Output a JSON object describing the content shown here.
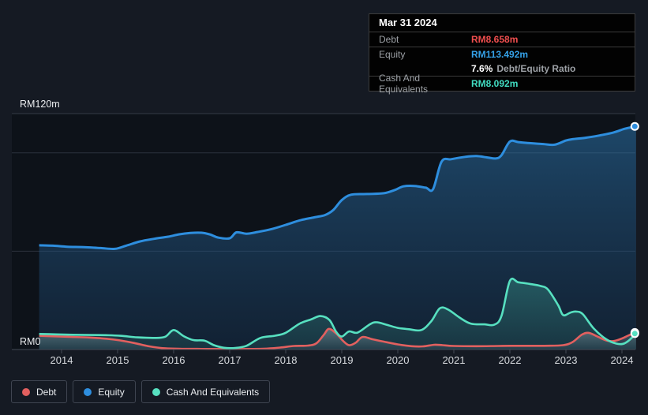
{
  "tooltip": {
    "title": "Mar 31 2024",
    "debt_label": "Debt",
    "debt_value": "RM8.658m",
    "equity_label": "Equity",
    "equity_value": "RM113.492m",
    "ratio_value": "7.6%",
    "ratio_label": "Debt/Equity Ratio",
    "cash_label": "Cash And Equivalents",
    "cash_value": "RM8.092m"
  },
  "legend": {
    "items": [
      {
        "label": "Debt",
        "color": "#e2605f"
      },
      {
        "label": "Equity",
        "color": "#2e8ede"
      },
      {
        "label": "Cash And Equivalents",
        "color": "#57e0c0"
      }
    ]
  },
  "chart_data": {
    "type": "area",
    "currency_unit": "RM millions",
    "y_axis_top_label": "RM120m",
    "y_axis_bottom_label": "RM0",
    "ylim": [
      0,
      120
    ],
    "gridline_values": [
      120,
      100,
      50,
      0
    ],
    "x_ticks": [
      2014,
      2015,
      2016,
      2017,
      2018,
      2019,
      2020,
      2021,
      2022,
      2023,
      2024
    ],
    "xlim": [
      2013.6,
      2024.25
    ],
    "legend_position": "bottom-left",
    "series": [
      {
        "name": "Equity",
        "color": "#2e8ede",
        "end_value": 113.492,
        "points": [
          [
            2013.6,
            53.0
          ],
          [
            2013.85,
            52.8
          ],
          [
            2014.1,
            52.3
          ],
          [
            2014.4,
            52.1
          ],
          [
            2014.7,
            51.6
          ],
          [
            2014.95,
            51.2
          ],
          [
            2015.15,
            52.8
          ],
          [
            2015.4,
            55.0
          ],
          [
            2015.65,
            56.3
          ],
          [
            2015.9,
            57.4
          ],
          [
            2016.1,
            58.6
          ],
          [
            2016.3,
            59.3
          ],
          [
            2016.5,
            59.4
          ],
          [
            2016.65,
            58.5
          ],
          [
            2016.8,
            56.9
          ],
          [
            2017.0,
            56.6
          ],
          [
            2017.12,
            59.6
          ],
          [
            2017.3,
            58.9
          ],
          [
            2017.5,
            59.8
          ],
          [
            2017.75,
            61.3
          ],
          [
            2018.0,
            63.4
          ],
          [
            2018.25,
            65.7
          ],
          [
            2018.5,
            67.2
          ],
          [
            2018.7,
            68.4
          ],
          [
            2018.85,
            71.0
          ],
          [
            2019.0,
            76.0
          ],
          [
            2019.17,
            78.8
          ],
          [
            2019.45,
            79.1
          ],
          [
            2019.75,
            79.5
          ],
          [
            2019.95,
            81.2
          ],
          [
            2020.1,
            83.0
          ],
          [
            2020.3,
            83.2
          ],
          [
            2020.5,
            82.3
          ],
          [
            2020.63,
            81.6
          ],
          [
            2020.78,
            95.5
          ],
          [
            2020.95,
            96.8
          ],
          [
            2021.2,
            98.0
          ],
          [
            2021.4,
            98.4
          ],
          [
            2021.6,
            97.7
          ],
          [
            2021.75,
            97.2
          ],
          [
            2021.85,
            98.8
          ],
          [
            2022.0,
            105.8
          ],
          [
            2022.15,
            105.5
          ],
          [
            2022.35,
            105.0
          ],
          [
            2022.6,
            104.5
          ],
          [
            2022.8,
            104.2
          ],
          [
            2023.0,
            106.3
          ],
          [
            2023.12,
            107.0
          ],
          [
            2023.35,
            107.7
          ],
          [
            2023.6,
            108.9
          ],
          [
            2023.85,
            110.4
          ],
          [
            2024.05,
            112.3
          ],
          [
            2024.25,
            113.492
          ]
        ]
      },
      {
        "name": "Debt",
        "color": "#e2605f",
        "end_value": 8.658,
        "points": [
          [
            2013.6,
            7.0
          ],
          [
            2013.9,
            6.7
          ],
          [
            2014.2,
            6.4
          ],
          [
            2014.5,
            6.1
          ],
          [
            2014.8,
            5.5
          ],
          [
            2015.05,
            4.6
          ],
          [
            2015.3,
            3.3
          ],
          [
            2015.55,
            1.7
          ],
          [
            2015.8,
            0.7
          ],
          [
            2016.1,
            0.4
          ],
          [
            2016.6,
            0.3
          ],
          [
            2017.1,
            0.3
          ],
          [
            2017.6,
            0.4
          ],
          [
            2017.9,
            1.0
          ],
          [
            2018.15,
            1.8
          ],
          [
            2018.4,
            2.0
          ],
          [
            2018.55,
            3.2
          ],
          [
            2018.68,
            7.5
          ],
          [
            2018.77,
            10.5
          ],
          [
            2018.9,
            8.2
          ],
          [
            2019.02,
            4.5
          ],
          [
            2019.13,
            2.2
          ],
          [
            2019.25,
            3.5
          ],
          [
            2019.37,
            6.4
          ],
          [
            2019.55,
            5.2
          ],
          [
            2019.75,
            4.0
          ],
          [
            2020.0,
            2.6
          ],
          [
            2020.25,
            1.7
          ],
          [
            2020.45,
            1.6
          ],
          [
            2020.65,
            2.4
          ],
          [
            2020.8,
            2.2
          ],
          [
            2021.0,
            1.8
          ],
          [
            2021.4,
            1.7
          ],
          [
            2021.8,
            1.8
          ],
          [
            2022.2,
            1.9
          ],
          [
            2022.6,
            1.9
          ],
          [
            2022.95,
            2.2
          ],
          [
            2023.12,
            3.8
          ],
          [
            2023.28,
            7.5
          ],
          [
            2023.4,
            8.5
          ],
          [
            2023.55,
            6.8
          ],
          [
            2023.72,
            4.6
          ],
          [
            2023.85,
            4.3
          ],
          [
            2024.0,
            5.6
          ],
          [
            2024.12,
            7.2
          ],
          [
            2024.25,
            8.658
          ]
        ]
      },
      {
        "name": "Cash And Equivalents",
        "color": "#57e0c0",
        "end_value": 8.092,
        "points": [
          [
            2013.6,
            7.9
          ],
          [
            2013.9,
            7.7
          ],
          [
            2014.2,
            7.5
          ],
          [
            2014.5,
            7.4
          ],
          [
            2014.8,
            7.3
          ],
          [
            2015.05,
            7.0
          ],
          [
            2015.35,
            6.2
          ],
          [
            2015.65,
            5.9
          ],
          [
            2015.85,
            6.5
          ],
          [
            2016.0,
            9.9
          ],
          [
            2016.18,
            6.8
          ],
          [
            2016.35,
            4.8
          ],
          [
            2016.55,
            4.5
          ],
          [
            2016.72,
            2.2
          ],
          [
            2016.9,
            0.9
          ],
          [
            2017.1,
            0.8
          ],
          [
            2017.3,
            1.9
          ],
          [
            2017.55,
            5.9
          ],
          [
            2017.8,
            7.0
          ],
          [
            2018.0,
            8.5
          ],
          [
            2018.25,
            13.2
          ],
          [
            2018.45,
            15.3
          ],
          [
            2018.62,
            17.0
          ],
          [
            2018.78,
            15.0
          ],
          [
            2018.9,
            9.0
          ],
          [
            2019.0,
            6.6
          ],
          [
            2019.13,
            9.2
          ],
          [
            2019.28,
            8.6
          ],
          [
            2019.5,
            12.8
          ],
          [
            2019.62,
            13.9
          ],
          [
            2019.8,
            12.6
          ],
          [
            2020.0,
            11.0
          ],
          [
            2020.2,
            10.3
          ],
          [
            2020.42,
            9.9
          ],
          [
            2020.6,
            14.5
          ],
          [
            2020.75,
            21.0
          ],
          [
            2020.9,
            20.3
          ],
          [
            2021.1,
            16.3
          ],
          [
            2021.3,
            13.2
          ],
          [
            2021.55,
            12.8
          ],
          [
            2021.72,
            12.6
          ],
          [
            2021.85,
            17.0
          ],
          [
            2022.0,
            34.9
          ],
          [
            2022.15,
            34.2
          ],
          [
            2022.35,
            33.4
          ],
          [
            2022.55,
            32.3
          ],
          [
            2022.68,
            30.5
          ],
          [
            2022.86,
            22.6
          ],
          [
            2022.95,
            17.5
          ],
          [
            2023.08,
            18.8
          ],
          [
            2023.18,
            19.3
          ],
          [
            2023.3,
            18.0
          ],
          [
            2023.5,
            10.6
          ],
          [
            2023.72,
            5.2
          ],
          [
            2023.9,
            3.0
          ],
          [
            2024.02,
            2.9
          ],
          [
            2024.12,
            4.5
          ],
          [
            2024.25,
            8.092
          ]
        ]
      }
    ]
  }
}
